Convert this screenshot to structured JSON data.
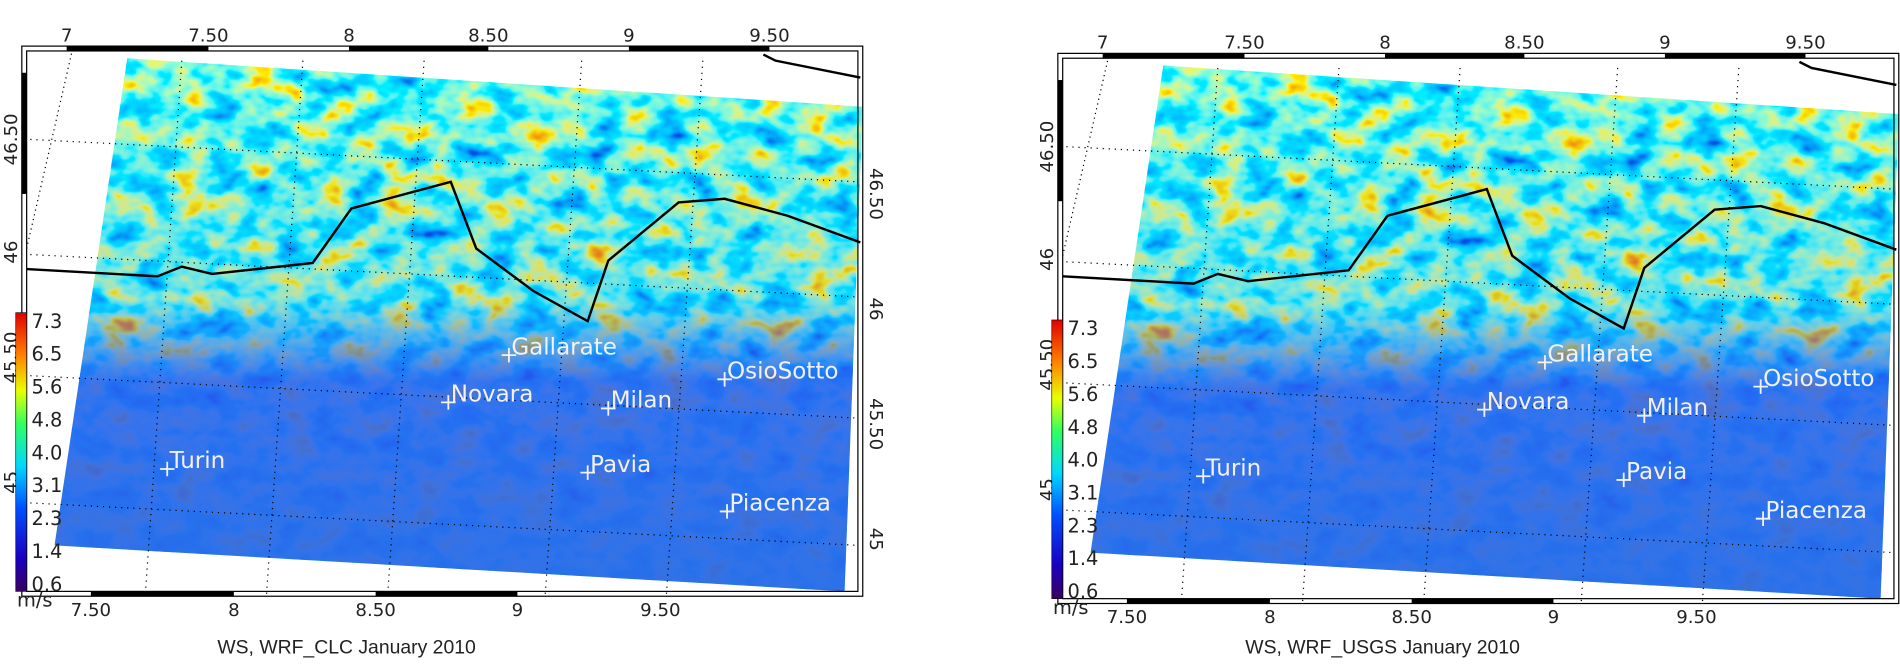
{
  "panels": [
    {
      "caption": "WS, WRF_CLC January 2010",
      "top_labels": [
        "7",
        "7.50",
        "8",
        "8.50",
        "9",
        "9.50"
      ],
      "bottom_labels": [
        "7.50",
        "8",
        "8.50",
        "9",
        "9.50"
      ],
      "left_labels": [
        "46.50",
        "46",
        "45.50",
        "45"
      ],
      "right_labels": [
        "46.50",
        "46",
        "45.50",
        "45"
      ],
      "colorbar": {
        "unit": "m/s",
        "labels": [
          "7.3",
          "6.5",
          "5.6",
          "4.8",
          "4.0",
          "3.1",
          "2.3",
          "1.4",
          "0.6"
        ]
      },
      "cities": [
        "Gallarate",
        "Novara",
        "Milan",
        "OsioSotto",
        "Turin",
        "Pavia",
        "Piacenza"
      ]
    },
    {
      "caption": "WS, WRF_USGS January 2010",
      "top_labels": [
        "7",
        "7.50",
        "8",
        "8.50",
        "9",
        "9.50"
      ],
      "bottom_labels": [
        "7.50",
        "8",
        "8.50",
        "9",
        "9.50"
      ],
      "left_labels": [
        "46.50",
        "46",
        "45.50",
        "45"
      ],
      "colorbar": {
        "unit": "m/s",
        "labels": [
          "7.3",
          "6.5",
          "5.6",
          "4.8",
          "4.0",
          "3.1",
          "2.3",
          "1.4",
          "0.6"
        ]
      },
      "cities": [
        "Gallarate",
        "Novara",
        "Milan",
        "OsioSotto",
        "Turin",
        "Pavia",
        "Piacenza"
      ]
    }
  ]
}
